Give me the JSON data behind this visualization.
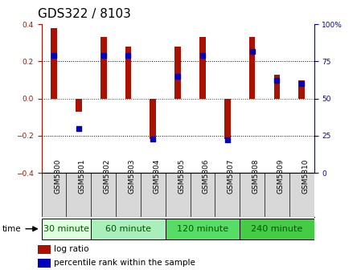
{
  "title": "GDS322 / 8103",
  "samples": [
    "GSM5800",
    "GSM5801",
    "GSM5802",
    "GSM5803",
    "GSM5804",
    "GSM5805",
    "GSM5806",
    "GSM5807",
    "GSM5808",
    "GSM5809",
    "GSM5810"
  ],
  "log_ratio": [
    0.38,
    -0.07,
    0.33,
    0.28,
    -0.22,
    0.28,
    0.33,
    -0.22,
    0.33,
    0.13,
    0.1
  ],
  "percentile_rank": [
    79,
    30,
    79,
    79,
    23,
    65,
    79,
    22,
    82,
    62,
    60
  ],
  "groups": [
    {
      "label": "30 minute",
      "start": 0,
      "end": 2,
      "color": "#ddffdd"
    },
    {
      "label": "60 minute",
      "start": 2,
      "end": 5,
      "color": "#aaeebb"
    },
    {
      "label": "120 minute",
      "start": 5,
      "end": 8,
      "color": "#55dd66"
    },
    {
      "label": "240 minute",
      "start": 8,
      "end": 11,
      "color": "#44cc44"
    }
  ],
  "bar_color": "#aa1100",
  "dot_color": "#0000bb",
  "ylim_left": [
    -0.4,
    0.4
  ],
  "ylim_right": [
    0,
    100
  ],
  "yticks_left": [
    -0.4,
    -0.2,
    0.0,
    0.2,
    0.4
  ],
  "yticks_right": [
    0,
    25,
    50,
    75,
    100
  ],
  "hlines": [
    0.2,
    0.0,
    -0.2
  ],
  "hline_colors": [
    "black",
    "#cc0000",
    "black"
  ],
  "hline_styles": [
    "dotted",
    "dotted",
    "dotted"
  ],
  "bg_color": "#ffffff",
  "plot_bg": "#ffffff",
  "title_fontsize": 11,
  "tick_fontsize": 6.5,
  "group_label_fontsize": 8,
  "legend_fontsize": 7.5,
  "bar_width": 0.25
}
